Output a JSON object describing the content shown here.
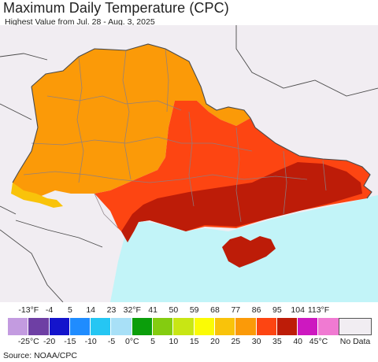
{
  "title": "Maximum Daily Temperature (CPC)",
  "subtitle": "Highest Value from Jul. 28 - Aug. 3, 2025",
  "source": "Source: NOAA/CPC",
  "legend": {
    "fahrenheit_labels": [
      "-13°F",
      "-4",
      "5",
      "14",
      "23",
      "32°F",
      "41",
      "50",
      "59",
      "68",
      "77",
      "86",
      "95",
      "104",
      "113°F"
    ],
    "celsius_labels": [
      "-25°C",
      "-20",
      "-15",
      "-10",
      "-5",
      "0°C",
      "5",
      "10",
      "15",
      "20",
      "25",
      "30",
      "35",
      "40",
      "45°C"
    ],
    "colors": [
      "#c39be0",
      "#6e3fa4",
      "#1414cc",
      "#1f8cff",
      "#25c6f3",
      "#a8e0f7",
      "#0b9e0b",
      "#84cc10",
      "#c8e614",
      "#fbfb05",
      "#f9c30a",
      "#fb9a08",
      "#fd4512",
      "#bd1c08",
      "#cd18c0",
      "#f07ad2"
    ],
    "no_data_label": "No Data",
    "no_data_color": "#f1edf2"
  },
  "map": {
    "ocean_color": "#c2f4f8",
    "background_color": "#f1edf2",
    "region_colors": {
      "north_west": "#fb9a08",
      "south_east": "#fd4512",
      "hottest": "#bd1c08",
      "western_edge": "#f9c30a"
    }
  }
}
